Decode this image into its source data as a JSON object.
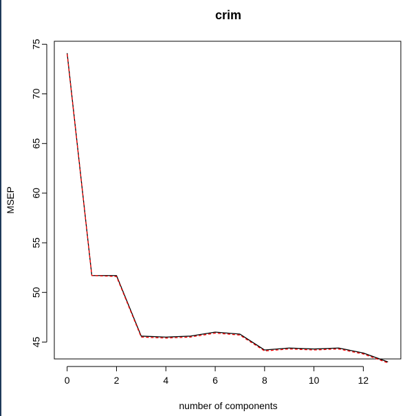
{
  "chart_data": {
    "type": "line",
    "title": "crim",
    "xlabel": "number of components",
    "ylabel": "MSEP",
    "xlim": [
      -0.52,
      13.52
    ],
    "ylim": [
      43.3,
      75.3
    ],
    "xticks": [
      0,
      2,
      4,
      6,
      8,
      10,
      12
    ],
    "yticks": [
      45,
      50,
      55,
      60,
      65,
      70,
      75
    ],
    "x": [
      0,
      1,
      2,
      3,
      4,
      5,
      6,
      7,
      8,
      9,
      10,
      11,
      12,
      13
    ],
    "series": [
      {
        "line_style": "solid",
        "color": "#000000",
        "values": [
          74.1,
          51.7,
          51.7,
          45.6,
          45.5,
          45.6,
          46.0,
          45.8,
          44.2,
          44.4,
          44.3,
          44.4,
          43.9,
          43.0
        ]
      },
      {
        "line_style": "dashed",
        "color": "#ff0000",
        "values": [
          74.0,
          51.7,
          51.6,
          45.5,
          45.4,
          45.5,
          45.9,
          45.7,
          44.1,
          44.3,
          44.2,
          44.3,
          43.8,
          42.9
        ]
      }
    ],
    "grid": false,
    "legend": "none"
  }
}
